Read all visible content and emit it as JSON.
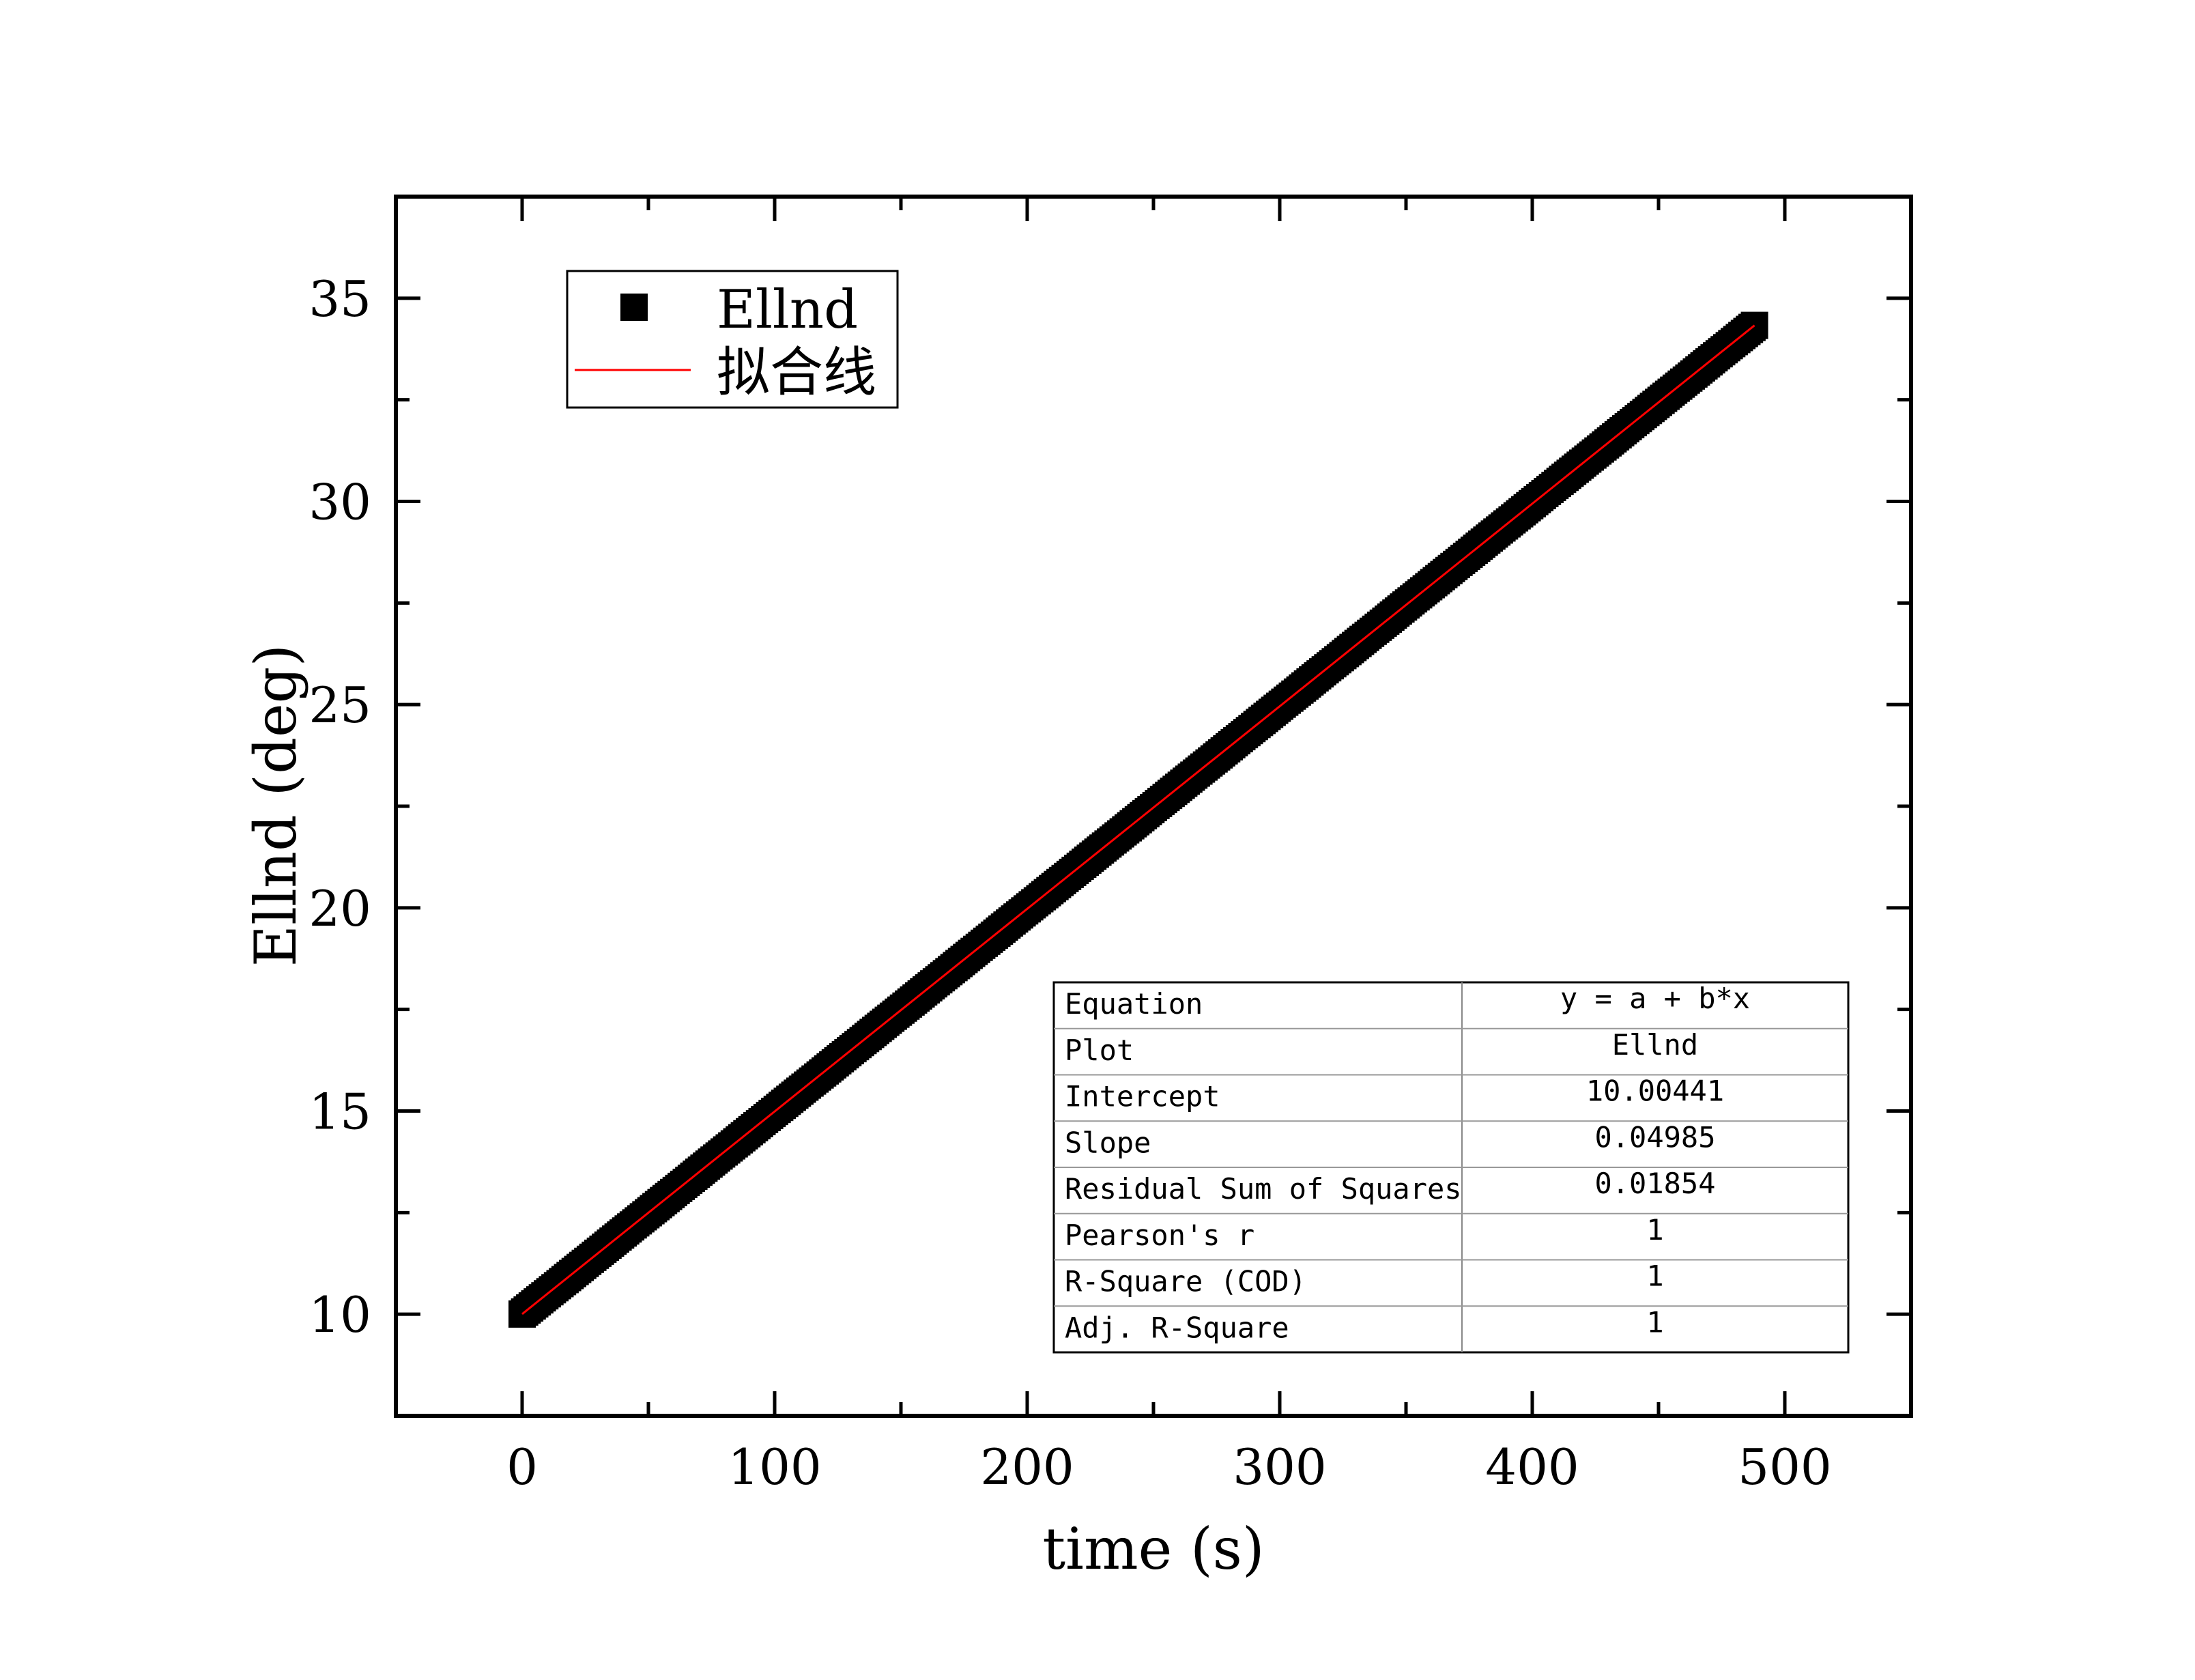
{
  "chart_data": {
    "type": "scatter",
    "title": "",
    "xlabel": "time (s)",
    "ylabel": "Ellnd (deg)",
    "xlim": [
      -50,
      550
    ],
    "ylim": [
      7.5,
      37.5
    ],
    "xticks": [
      0,
      100,
      200,
      300,
      400,
      500
    ],
    "yticks": [
      10,
      15,
      20,
      25,
      30,
      35
    ],
    "grid": false,
    "legend_position": "top-left",
    "series": [
      {
        "name": "Ellnd",
        "kind": "scatter",
        "marker": "square",
        "color": "#000000",
        "x_range": [
          0,
          488
        ],
        "x_step": 1,
        "intercept": 10.00441,
        "slope": 0.04985
      },
      {
        "name": "拟合线",
        "kind": "line",
        "color": "#ff0000",
        "x": [
          0,
          488
        ],
        "y": [
          10.00441,
          34.3311
        ]
      }
    ],
    "fit_table": {
      "rows": [
        {
          "label": "Equation",
          "value": "y = a + b*x"
        },
        {
          "label": "Plot",
          "value": "Ellnd"
        },
        {
          "label": "Intercept",
          "value": "10.00441"
        },
        {
          "label": "Slope",
          "value": "0.04985"
        },
        {
          "label": "Residual Sum of Squares",
          "value": "0.01854"
        },
        {
          "label": "Pearson's r",
          "value": "1"
        },
        {
          "label": "R-Square (COD)",
          "value": "1"
        },
        {
          "label": "Adj. R-Square",
          "value": "1"
        }
      ]
    }
  }
}
